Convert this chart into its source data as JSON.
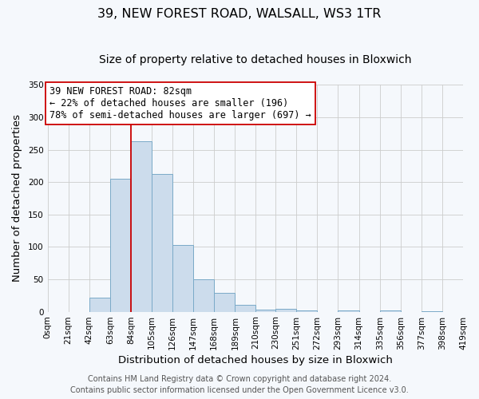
{
  "title": "39, NEW FOREST ROAD, WALSALL, WS3 1TR",
  "subtitle": "Size of property relative to detached houses in Bloxwich",
  "xlabel": "Distribution of detached houses by size in Bloxwich",
  "ylabel": "Number of detached properties",
  "bin_edges": [
    0,
    21,
    42,
    63,
    84,
    105,
    126,
    147,
    168,
    189,
    210,
    230,
    251,
    272,
    293,
    314,
    335,
    356,
    377,
    398,
    419
  ],
  "bar_heights": [
    0,
    0,
    22,
    205,
    263,
    212,
    103,
    50,
    29,
    10,
    3,
    5,
    2,
    0,
    2,
    0,
    2,
    0,
    1,
    0
  ],
  "bar_color": "#ccdcec",
  "bar_edge_color": "#7aaac8",
  "vline_x": 84,
  "vline_color": "#cc0000",
  "ylim": [
    0,
    350
  ],
  "yticks": [
    0,
    50,
    100,
    150,
    200,
    250,
    300,
    350
  ],
  "xtick_labels": [
    "0sqm",
    "21sqm",
    "42sqm",
    "63sqm",
    "84sqm",
    "105sqm",
    "126sqm",
    "147sqm",
    "168sqm",
    "189sqm",
    "210sqm",
    "230sqm",
    "251sqm",
    "272sqm",
    "293sqm",
    "314sqm",
    "335sqm",
    "356sqm",
    "377sqm",
    "398sqm",
    "419sqm"
  ],
  "annotation_text": "39 NEW FOREST ROAD: 82sqm\n← 22% of detached houses are smaller (196)\n78% of semi-detached houses are larger (697) →",
  "annotation_box_color": "#ffffff",
  "annotation_box_edge": "#cc0000",
  "footer_line1": "Contains HM Land Registry data © Crown copyright and database right 2024.",
  "footer_line2": "Contains public sector information licensed under the Open Government Licence v3.0.",
  "background_color": "#f5f8fc",
  "plot_background_color": "#f5f8fc",
  "title_fontsize": 11.5,
  "subtitle_fontsize": 10,
  "axis_label_fontsize": 9.5,
  "tick_fontsize": 7.5,
  "annotation_fontsize": 8.5,
  "footer_fontsize": 7
}
